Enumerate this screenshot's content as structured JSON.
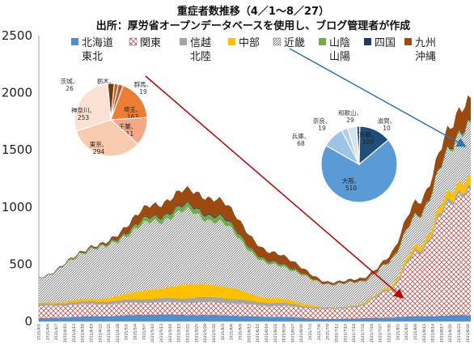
{
  "title_line1": "重症者数推移（4／1～8／27）",
  "title_line2": "出所：厚労省オープンデータベースを使用し、ブログ管理者が作成",
  "chart_data": {
    "type": "area",
    "stacked": true,
    "ylim": [
      0,
      2500
    ],
    "yticks": [
      0,
      500,
      1000,
      1500,
      2000,
      2500
    ],
    "grid": false,
    "legend_position": "top",
    "x_start": "2021/4/1",
    "x_end": "2021/8/27",
    "x_tick_labels": [
      "2021/4/1",
      "2021/4/4",
      "2021/4/7",
      "2021/4/10",
      "2021/4/13",
      "2021/4/16",
      "2021/4/19",
      "2021/4/22",
      "2021/4/25",
      "2021/4/28",
      "2021/5/1",
      "2021/5/4",
      "2021/5/7",
      "2021/5/10",
      "2021/5/13",
      "2021/5/16",
      "2021/5/19",
      "2021/5/22",
      "2021/5/25",
      "2021/5/28",
      "2021/5/31",
      "2021/6/3",
      "2021/6/6",
      "2021/6/9",
      "2021/6/12",
      "2021/6/15",
      "2021/6/18",
      "2021/6/21",
      "2021/6/24",
      "2021/6/27",
      "2021/6/30",
      "2021/7/3",
      "2021/7/6",
      "2021/7/9",
      "2021/7/12",
      "2021/7/15",
      "2021/7/18",
      "2021/7/21",
      "2021/7/24",
      "2021/7/27",
      "2021/7/30",
      "2021/8/2",
      "2021/8/5",
      "2021/8/8",
      "2021/8/11",
      "2021/8/14",
      "2021/8/17",
      "2021/8/20",
      "2021/8/23",
      "2021/8/26"
    ],
    "series": [
      {
        "name": "北海道東北",
        "label_lines": [
          "北海道",
          "東北"
        ],
        "color": "#4e8fd0",
        "pattern": "solid",
        "anchors": [
          [
            0,
            28
          ],
          [
            20,
            45
          ],
          [
            40,
            60
          ],
          [
            60,
            55
          ],
          [
            80,
            40
          ],
          [
            100,
            22
          ],
          [
            115,
            30
          ],
          [
            130,
            45
          ],
          [
            148,
            55
          ]
        ]
      },
      {
        "name": "関東",
        "label_lines": [
          "関東"
        ],
        "color": "#c0504d",
        "pattern": "cross-hatch",
        "anchors": [
          [
            0,
            105
          ],
          [
            20,
            105
          ],
          [
            40,
            105
          ],
          [
            60,
            110
          ],
          [
            80,
            95
          ],
          [
            100,
            85
          ],
          [
            110,
            100
          ],
          [
            120,
            240
          ],
          [
            130,
            550
          ],
          [
            140,
            940
          ],
          [
            148,
            1110
          ]
        ]
      },
      {
        "name": "信越北陸",
        "label_lines": [
          "信越",
          "北陸"
        ],
        "color": "#a5a5a5",
        "pattern": "solid",
        "anchors": [
          [
            0,
            20
          ],
          [
            20,
            25
          ],
          [
            40,
            35
          ],
          [
            60,
            45
          ],
          [
            80,
            30
          ],
          [
            100,
            10
          ],
          [
            115,
            15
          ],
          [
            130,
            25
          ],
          [
            148,
            35
          ]
        ]
      },
      {
        "name": "中部",
        "label_lines": [
          "中部"
        ],
        "color": "#ffc000",
        "pattern": "solid",
        "anchors": [
          [
            0,
            10
          ],
          [
            20,
            25
          ],
          [
            40,
            80
          ],
          [
            50,
            120
          ],
          [
            60,
            110
          ],
          [
            80,
            40
          ],
          [
            100,
            5
          ],
          [
            115,
            10
          ],
          [
            130,
            40
          ],
          [
            148,
            90
          ]
        ]
      },
      {
        "name": "近畿",
        "label_lines": [
          "近畿"
        ],
        "color": "#7f7f7f",
        "pattern": "diagonal-hatch",
        "anchors": [
          [
            0,
            220
          ],
          [
            20,
            440
          ],
          [
            40,
            590
          ],
          [
            50,
            640
          ],
          [
            60,
            560
          ],
          [
            80,
            290
          ],
          [
            100,
            200
          ],
          [
            115,
            190
          ],
          [
            130,
            260
          ],
          [
            148,
            440
          ]
        ]
      },
      {
        "name": "山陰山陽",
        "label_lines": [
          "山陰",
          "山陽"
        ],
        "color": "#70ad47",
        "pattern": "solid",
        "anchors": [
          [
            0,
            3
          ],
          [
            20,
            10
          ],
          [
            40,
            40
          ],
          [
            60,
            45
          ],
          [
            80,
            20
          ],
          [
            100,
            5
          ],
          [
            115,
            5
          ],
          [
            130,
            10
          ],
          [
            148,
            20
          ]
        ]
      },
      {
        "name": "四国",
        "label_lines": [
          "四国"
        ],
        "color": "#1f3864",
        "pattern": "solid",
        "anchors": [
          [
            0,
            2
          ],
          [
            20,
            4
          ],
          [
            40,
            8
          ],
          [
            60,
            10
          ],
          [
            80,
            5
          ],
          [
            100,
            2
          ],
          [
            115,
            2
          ],
          [
            130,
            5
          ],
          [
            148,
            10
          ]
        ]
      },
      {
        "name": "九州沖縄",
        "label_lines": [
          "九州",
          "沖縄"
        ],
        "color": "#9c4a0d",
        "pattern": "solid",
        "anchors": [
          [
            0,
            2
          ],
          [
            20,
            10
          ],
          [
            40,
            100
          ],
          [
            50,
            130
          ],
          [
            60,
            140
          ],
          [
            80,
            80
          ],
          [
            100,
            15
          ],
          [
            115,
            25
          ],
          [
            130,
            110
          ],
          [
            148,
            200
          ]
        ]
      }
    ]
  },
  "pie_kanto": {
    "slices": [
      {
        "name": "茨城",
        "value": 26,
        "label": "茨城、26",
        "color": "#7a3a06"
      },
      {
        "name": "栃木",
        "value": 16,
        "label": "栃木、16",
        "color": "#c65a10"
      },
      {
        "name": "群馬",
        "value": 19,
        "label": "群馬、19",
        "color": "#b85a2a"
      },
      {
        "name": "埼玉",
        "value": 163,
        "label": "埼玉、163",
        "color": "#ed7d31"
      },
      {
        "name": "千葉",
        "value": 111,
        "label": "千葉、111",
        "color": "#f4a886"
      },
      {
        "name": "東京",
        "value": 294,
        "label": "東京、294",
        "color": "#f8cbad"
      },
      {
        "name": "神奈川",
        "value": 253,
        "label": "神奈川、253",
        "color": "#fbe0d4"
      }
    ]
  },
  "pie_kinki": {
    "slices": [
      {
        "name": "大阪",
        "value": 510,
        "label": "大阪、510",
        "color": "#5b9bd5"
      },
      {
        "name": "兵庫",
        "value": 68,
        "label": "兵庫、68",
        "color": "#9dc3e6"
      },
      {
        "name": "奈良",
        "value": 19,
        "label": "奈良、19",
        "color": "#b4cde6"
      },
      {
        "name": "和歌山",
        "value": 29,
        "label": "和歌山、29",
        "color": "#d6e4f2"
      },
      {
        "name": "滋賀",
        "value": 10,
        "label": "滋賀、10",
        "color": "#2e5d8a"
      },
      {
        "name": "京都",
        "value": 100,
        "label": "京都、100",
        "color": "#1f4e79"
      }
    ]
  },
  "colors": {
    "arrow_red": "#c00000",
    "arrow_blue": "#2e75b6",
    "axis": "#888888"
  }
}
